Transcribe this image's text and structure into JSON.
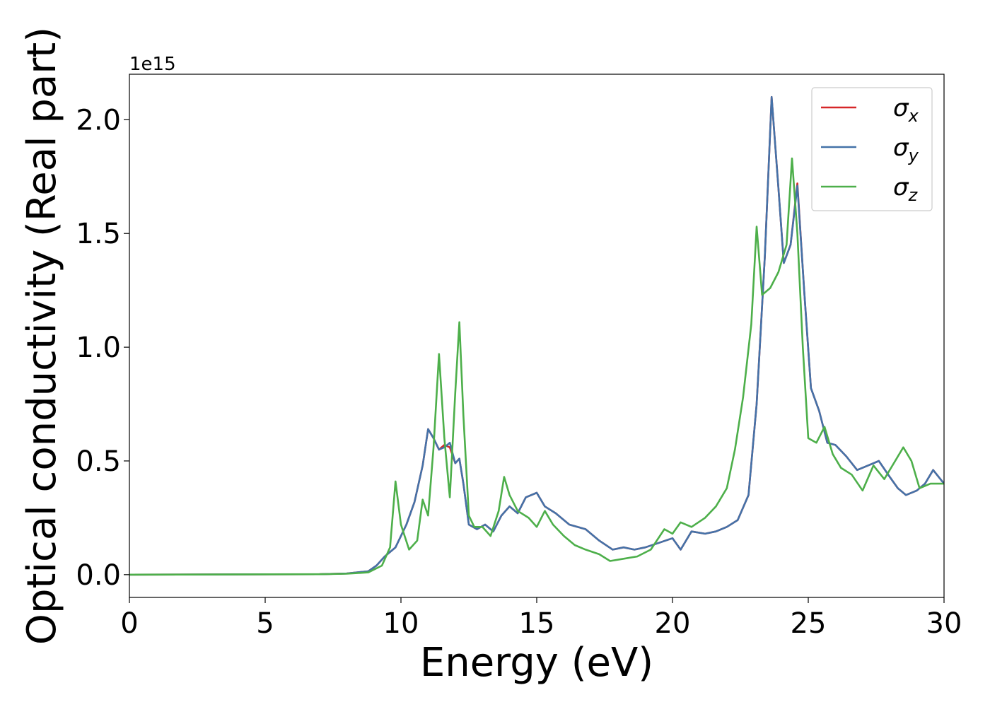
{
  "chart_data": {
    "type": "line",
    "xlabel": "Energy (eV)",
    "ylabel": "Optical conductivity (Real part)",
    "y_offset_label": "1e15",
    "xlim": [
      0,
      30
    ],
    "ylim": [
      -0.1,
      2.2
    ],
    "x_ticks": [
      0,
      5,
      10,
      15,
      20,
      25,
      30
    ],
    "x_tick_labels": [
      "0",
      "5",
      "10",
      "15",
      "20",
      "25",
      "30"
    ],
    "y_ticks": [
      0.0,
      0.5,
      1.0,
      1.5,
      2.0
    ],
    "y_tick_labels": [
      "0.0",
      "0.5",
      "1.0",
      "1.5",
      "2.0"
    ],
    "grid": false,
    "legend_position": "top-right",
    "series": [
      {
        "name": "σ_x",
        "legend_base": "σ",
        "legend_sub": "x",
        "color": "#d62728",
        "points": [
          [
            0,
            0
          ],
          [
            7,
            0.002
          ],
          [
            8,
            0.005
          ],
          [
            8.8,
            0.015
          ],
          [
            9.1,
            0.04
          ],
          [
            9.4,
            0.08
          ],
          [
            9.8,
            0.12
          ],
          [
            10.2,
            0.22
          ],
          [
            10.5,
            0.32
          ],
          [
            10.8,
            0.48
          ],
          [
            11.0,
            0.64
          ],
          [
            11.2,
            0.6
          ],
          [
            11.4,
            0.55
          ],
          [
            11.6,
            0.57
          ],
          [
            11.8,
            0.56
          ],
          [
            12.0,
            0.49
          ],
          [
            12.15,
            0.51
          ],
          [
            12.3,
            0.4
          ],
          [
            12.5,
            0.22
          ],
          [
            12.8,
            0.2
          ],
          [
            13.1,
            0.22
          ],
          [
            13.4,
            0.19
          ],
          [
            13.7,
            0.26
          ],
          [
            14.0,
            0.3
          ],
          [
            14.3,
            0.27
          ],
          [
            14.6,
            0.34
          ],
          [
            15.0,
            0.36
          ],
          [
            15.3,
            0.3
          ],
          [
            15.7,
            0.27
          ],
          [
            16.2,
            0.22
          ],
          [
            16.8,
            0.2
          ],
          [
            17.3,
            0.15
          ],
          [
            17.8,
            0.11
          ],
          [
            18.2,
            0.12
          ],
          [
            18.6,
            0.11
          ],
          [
            19.0,
            0.12
          ],
          [
            19.5,
            0.14
          ],
          [
            20.0,
            0.16
          ],
          [
            20.3,
            0.11
          ],
          [
            20.7,
            0.19
          ],
          [
            21.2,
            0.18
          ],
          [
            21.6,
            0.19
          ],
          [
            22.0,
            0.21
          ],
          [
            22.4,
            0.24
          ],
          [
            22.8,
            0.35
          ],
          [
            23.1,
            0.75
          ],
          [
            23.4,
            1.4
          ],
          [
            23.65,
            2.1
          ],
          [
            23.9,
            1.7
          ],
          [
            24.1,
            1.37
          ],
          [
            24.35,
            1.45
          ],
          [
            24.6,
            1.72
          ],
          [
            24.85,
            1.25
          ],
          [
            25.1,
            0.82
          ],
          [
            25.4,
            0.72
          ],
          [
            25.7,
            0.58
          ],
          [
            26.0,
            0.57
          ],
          [
            26.4,
            0.52
          ],
          [
            26.8,
            0.46
          ],
          [
            27.2,
            0.48
          ],
          [
            27.6,
            0.5
          ],
          [
            28.0,
            0.43
          ],
          [
            28.3,
            0.38
          ],
          [
            28.6,
            0.35
          ],
          [
            29.0,
            0.37
          ],
          [
            29.3,
            0.4
          ],
          [
            29.6,
            0.46
          ],
          [
            30.0,
            0.4
          ]
        ]
      },
      {
        "name": "σ_y",
        "legend_base": "σ",
        "legend_sub": "y",
        "color": "#4472a8",
        "points": [
          [
            0,
            0
          ],
          [
            7,
            0.002
          ],
          [
            8,
            0.005
          ],
          [
            8.8,
            0.015
          ],
          [
            9.1,
            0.04
          ],
          [
            9.4,
            0.08
          ],
          [
            9.8,
            0.12
          ],
          [
            10.2,
            0.22
          ],
          [
            10.5,
            0.32
          ],
          [
            10.8,
            0.48
          ],
          [
            11.0,
            0.64
          ],
          [
            11.2,
            0.6
          ],
          [
            11.4,
            0.55
          ],
          [
            11.6,
            0.56
          ],
          [
            11.8,
            0.58
          ],
          [
            12.0,
            0.49
          ],
          [
            12.15,
            0.51
          ],
          [
            12.3,
            0.4
          ],
          [
            12.5,
            0.22
          ],
          [
            12.8,
            0.2
          ],
          [
            13.1,
            0.22
          ],
          [
            13.4,
            0.19
          ],
          [
            13.7,
            0.26
          ],
          [
            14.0,
            0.3
          ],
          [
            14.3,
            0.27
          ],
          [
            14.6,
            0.34
          ],
          [
            15.0,
            0.36
          ],
          [
            15.3,
            0.3
          ],
          [
            15.7,
            0.27
          ],
          [
            16.2,
            0.22
          ],
          [
            16.8,
            0.2
          ],
          [
            17.3,
            0.15
          ],
          [
            17.8,
            0.11
          ],
          [
            18.2,
            0.12
          ],
          [
            18.6,
            0.11
          ],
          [
            19.0,
            0.12
          ],
          [
            19.5,
            0.14
          ],
          [
            20.0,
            0.16
          ],
          [
            20.3,
            0.11
          ],
          [
            20.7,
            0.19
          ],
          [
            21.2,
            0.18
          ],
          [
            21.6,
            0.19
          ],
          [
            22.0,
            0.21
          ],
          [
            22.4,
            0.24
          ],
          [
            22.8,
            0.35
          ],
          [
            23.1,
            0.75
          ],
          [
            23.4,
            1.4
          ],
          [
            23.65,
            2.1
          ],
          [
            23.9,
            1.7
          ],
          [
            24.1,
            1.37
          ],
          [
            24.35,
            1.45
          ],
          [
            24.6,
            1.71
          ],
          [
            24.85,
            1.25
          ],
          [
            25.1,
            0.82
          ],
          [
            25.4,
            0.72
          ],
          [
            25.7,
            0.58
          ],
          [
            26.0,
            0.57
          ],
          [
            26.4,
            0.52
          ],
          [
            26.8,
            0.46
          ],
          [
            27.2,
            0.48
          ],
          [
            27.6,
            0.5
          ],
          [
            28.0,
            0.43
          ],
          [
            28.3,
            0.38
          ],
          [
            28.6,
            0.35
          ],
          [
            29.0,
            0.37
          ],
          [
            29.3,
            0.4
          ],
          [
            29.6,
            0.46
          ],
          [
            30.0,
            0.4
          ]
        ]
      },
      {
        "name": "σ_z",
        "legend_base": "σ",
        "legend_sub": "z",
        "color": "#4daf4a",
        "points": [
          [
            0,
            0
          ],
          [
            7,
            0.002
          ],
          [
            8,
            0.004
          ],
          [
            8.8,
            0.01
          ],
          [
            9.3,
            0.04
          ],
          [
            9.6,
            0.12
          ],
          [
            9.8,
            0.41
          ],
          [
            10.0,
            0.22
          ],
          [
            10.3,
            0.11
          ],
          [
            10.6,
            0.15
          ],
          [
            10.8,
            0.33
          ],
          [
            11.0,
            0.26
          ],
          [
            11.2,
            0.56
          ],
          [
            11.4,
            0.97
          ],
          [
            11.6,
            0.6
          ],
          [
            11.8,
            0.34
          ],
          [
            12.0,
            0.8
          ],
          [
            12.15,
            1.11
          ],
          [
            12.3,
            0.7
          ],
          [
            12.5,
            0.26
          ],
          [
            12.7,
            0.21
          ],
          [
            13.0,
            0.21
          ],
          [
            13.3,
            0.17
          ],
          [
            13.6,
            0.28
          ],
          [
            13.8,
            0.43
          ],
          [
            14.0,
            0.35
          ],
          [
            14.3,
            0.28
          ],
          [
            14.7,
            0.25
          ],
          [
            15.0,
            0.21
          ],
          [
            15.3,
            0.28
          ],
          [
            15.6,
            0.22
          ],
          [
            16.0,
            0.17
          ],
          [
            16.4,
            0.13
          ],
          [
            16.8,
            0.11
          ],
          [
            17.3,
            0.09
          ],
          [
            17.7,
            0.06
          ],
          [
            18.2,
            0.07
          ],
          [
            18.7,
            0.08
          ],
          [
            19.2,
            0.11
          ],
          [
            19.7,
            0.2
          ],
          [
            20.0,
            0.18
          ],
          [
            20.3,
            0.23
          ],
          [
            20.7,
            0.21
          ],
          [
            21.2,
            0.25
          ],
          [
            21.6,
            0.3
          ],
          [
            22.0,
            0.38
          ],
          [
            22.3,
            0.55
          ],
          [
            22.6,
            0.78
          ],
          [
            22.9,
            1.1
          ],
          [
            23.1,
            1.53
          ],
          [
            23.3,
            1.23
          ],
          [
            23.6,
            1.26
          ],
          [
            23.9,
            1.33
          ],
          [
            24.2,
            1.45
          ],
          [
            24.4,
            1.83
          ],
          [
            24.6,
            1.5
          ],
          [
            24.8,
            1.0
          ],
          [
            25.0,
            0.6
          ],
          [
            25.3,
            0.58
          ],
          [
            25.6,
            0.65
          ],
          [
            25.9,
            0.53
          ],
          [
            26.2,
            0.47
          ],
          [
            26.6,
            0.44
          ],
          [
            27.0,
            0.37
          ],
          [
            27.4,
            0.48
          ],
          [
            27.8,
            0.42
          ],
          [
            28.2,
            0.5
          ],
          [
            28.5,
            0.56
          ],
          [
            28.8,
            0.5
          ],
          [
            29.1,
            0.38
          ],
          [
            29.5,
            0.4
          ],
          [
            30.0,
            0.4
          ]
        ]
      }
    ]
  }
}
